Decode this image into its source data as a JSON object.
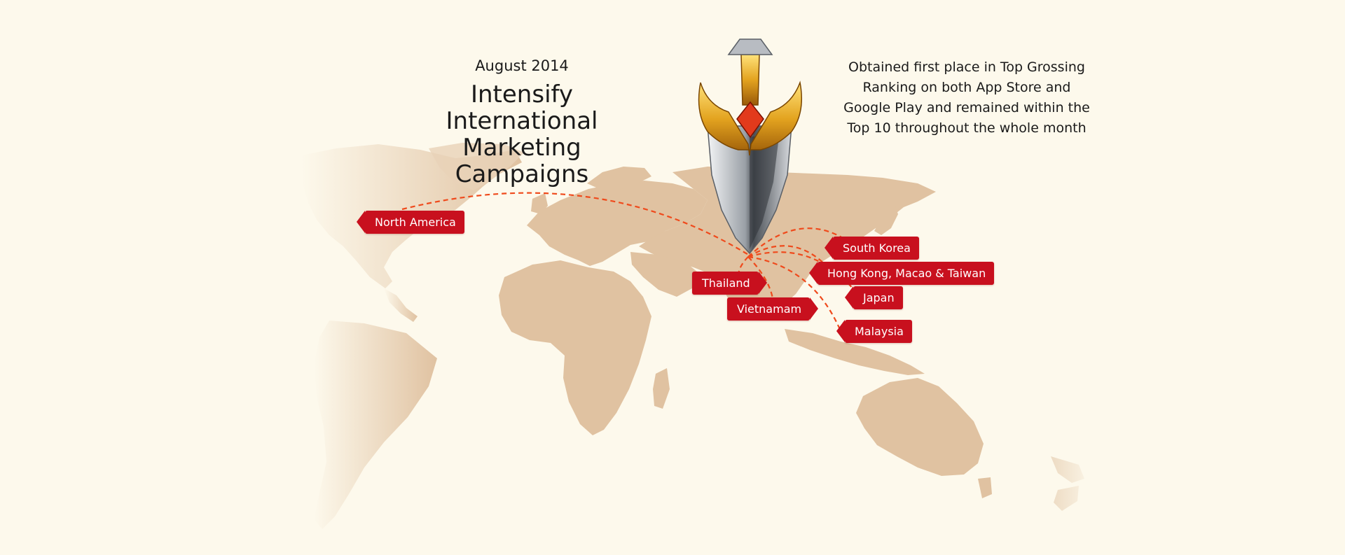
{
  "header": {
    "date": "August 2014",
    "title_line1": "Intensify International",
    "title_line2": "Marketing Campaigns"
  },
  "achievement": {
    "line1": "Obtained first place in Top Grossing",
    "line2": "Ranking on both App Store and",
    "line3": "Google Play and remained within the",
    "line4": "Top 10 throughout the whole month"
  },
  "regions": [
    {
      "label": "North America"
    },
    {
      "label": "South Korea"
    },
    {
      "label": "Hong Kong, Macao & Taiwan"
    },
    {
      "label": "Thailand"
    },
    {
      "label": "Japan"
    },
    {
      "label": "Vietnamam"
    },
    {
      "label": "Malaysia"
    }
  ],
  "colors": {
    "background": "#fdf9ec",
    "land": "#e0c2a1",
    "tag": "#c8101e",
    "route": "#ef4a1c",
    "sword_gold": "#e3a31f",
    "sword_blade": "#9aa0a6"
  },
  "icons": {
    "hub": "sword-icon"
  }
}
